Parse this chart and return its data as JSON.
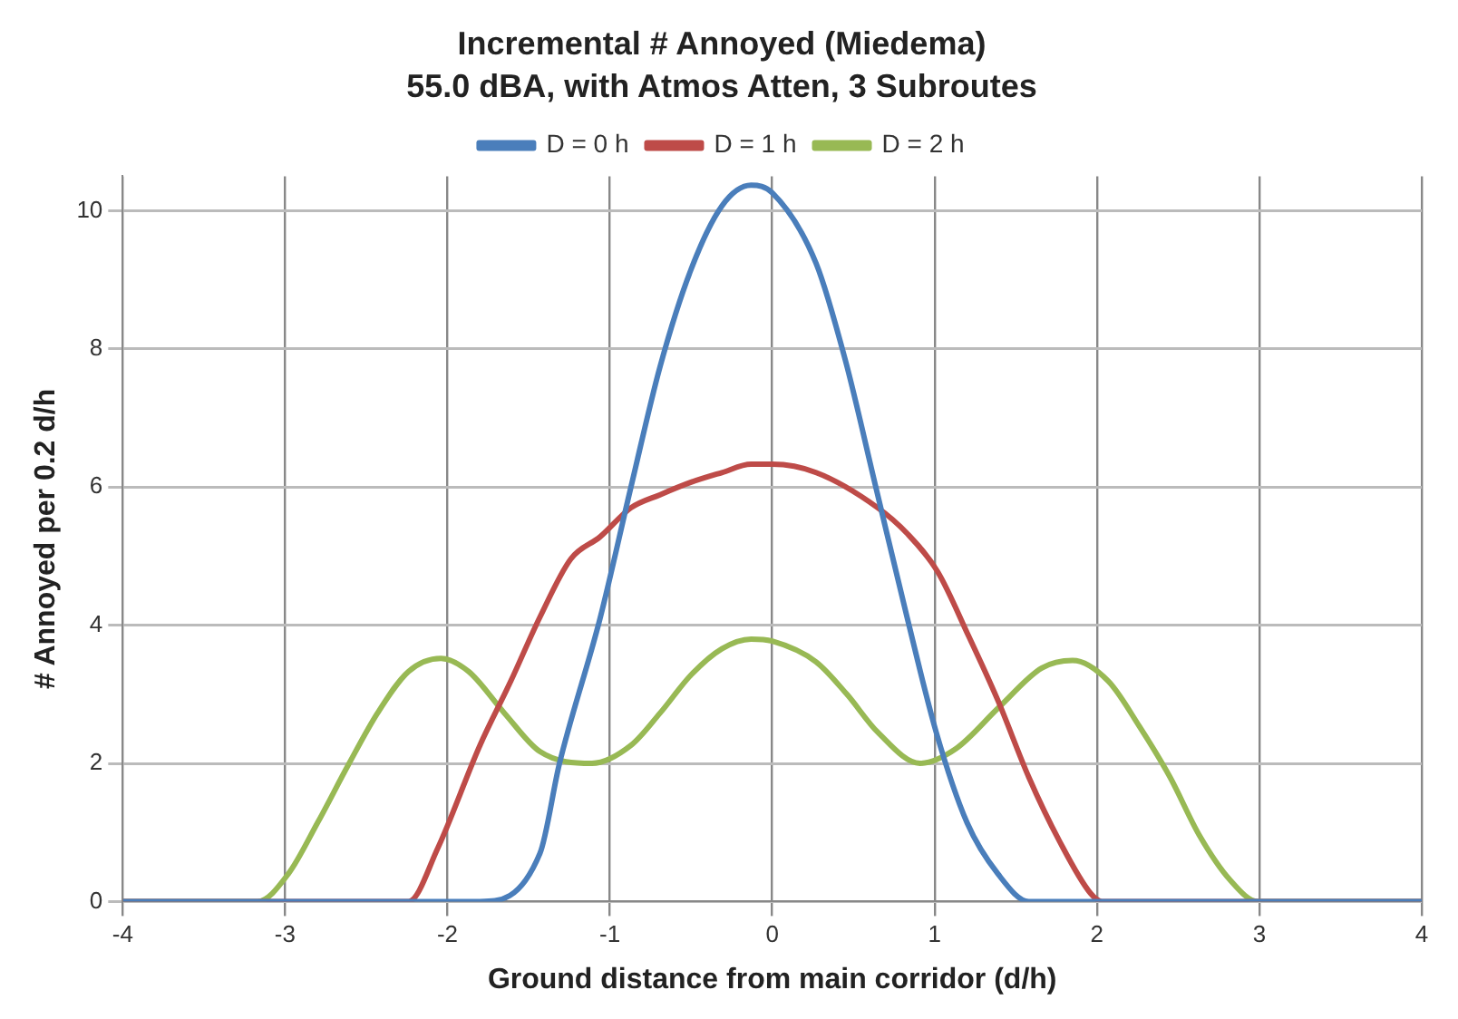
{
  "chart_data": {
    "type": "line",
    "title": "Incremental # Annoyed (Miedema)",
    "subtitle": "55.0 dBA, with Atmos Atten, 3 Subroutes",
    "xlabel": "Ground distance from main corridor (d/h)",
    "ylabel": "# Annoyed per 0.2 d/h",
    "xlim": [
      -4,
      4
    ],
    "xticks": [
      -4,
      -3,
      -2,
      -1,
      0,
      1,
      2,
      3,
      4
    ],
    "ylim": [
      0,
      10.5
    ],
    "yticks": [
      0,
      2,
      4,
      6,
      8,
      10
    ],
    "grid": true,
    "legend": "top",
    "marker": "none",
    "line_style": "solid",
    "series": [
      {
        "name": "D = 0 h",
        "color": "#4a7ebb",
        "x": [
          -4,
          -1.8,
          -1.43,
          -1.31,
          -1.06,
          -0.87,
          -0.69,
          -0.5,
          -0.31,
          -0.13,
          0,
          0.27,
          0.45,
          0.64,
          0.83,
          1.01,
          1.2,
          1.39,
          1.58,
          4
        ],
        "values": [
          0,
          0,
          0.7,
          2.0,
          4.1,
          6.0,
          7.75,
          9.15,
          10.07,
          10.37,
          10.26,
          9.24,
          7.84,
          5.98,
          4.12,
          2.45,
          1.14,
          0.4,
          0,
          0
        ]
      },
      {
        "name": "D = 1 h",
        "color": "#be4b48",
        "x": [
          -4,
          -2.24,
          -2.06,
          -1.8,
          -1.61,
          -1.43,
          -1.24,
          -1.06,
          -0.87,
          -0.69,
          -0.5,
          -0.31,
          -0.13,
          0,
          0.27,
          0.65,
          0.83,
          1.02,
          1.21,
          1.39,
          1.58,
          1.77,
          1.96,
          2.03,
          4
        ],
        "values": [
          0,
          0,
          0.77,
          2.26,
          3.19,
          4.12,
          4.96,
          5.28,
          5.7,
          5.89,
          6.07,
          6.21,
          6.33,
          6.33,
          6.21,
          5.7,
          5.33,
          4.77,
          3.84,
          2.91,
          1.8,
          0.87,
          0.12,
          0,
          0
        ]
      },
      {
        "name": "D = 2 h",
        "color": "#98b954",
        "x": [
          -4,
          -3.17,
          -2.98,
          -2.8,
          -2.61,
          -2.43,
          -2.24,
          -2.04,
          -1.87,
          -1.65,
          -1.43,
          -1.11,
          -0.87,
          -0.69,
          -0.5,
          -0.31,
          -0.13,
          0,
          0.27,
          0.46,
          0.65,
          0.91,
          1.13,
          1.4,
          1.66,
          1.85,
          2.07,
          2.26,
          2.45,
          2.63,
          2.82,
          2.99,
          4
        ],
        "values": [
          0,
          0,
          0.4,
          1.14,
          1.98,
          2.73,
          3.33,
          3.52,
          3.33,
          2.73,
          2.17,
          2.0,
          2.26,
          2.73,
          3.28,
          3.66,
          3.8,
          3.77,
          3.47,
          3.0,
          2.45,
          2.0,
          2.21,
          2.82,
          3.38,
          3.49,
          3.19,
          2.54,
          1.8,
          0.96,
          0.31,
          0,
          0
        ]
      }
    ]
  }
}
